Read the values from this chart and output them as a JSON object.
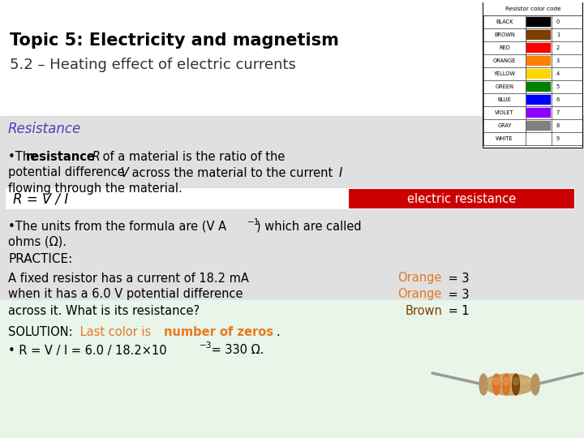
{
  "title1": "Topic 5: Electricity and magnetism",
  "title2": "5.2 – Heating effect of electric currents",
  "section_title": "Resistance",
  "bg_color": "#ffffff",
  "section_bg": "#e0e0e0",
  "practice_bg": "#e8f5e8",
  "resistor_table_title": "Resistor color code",
  "resistor_colors": [
    [
      "BLACK",
      "#000000",
      "0"
    ],
    [
      "BROWN",
      "#7B3F00",
      "1"
    ],
    [
      "RED",
      "#FF0000",
      "2"
    ],
    [
      "ORANGE",
      "#FF8000",
      "3"
    ],
    [
      "YELLOW",
      "#FFD700",
      "4"
    ],
    [
      "GREEN",
      "#008000",
      "5"
    ],
    [
      "BLUE",
      "#0000FF",
      "6"
    ],
    [
      "VIOLET",
      "#8B00FF",
      "7"
    ],
    [
      "GRAY",
      "#808080",
      "8"
    ],
    [
      "WHITE",
      "#FFFFFF",
      "9"
    ]
  ],
  "formula_label_bg": "#cc0000",
  "formula_label_text": "electric resistance",
  "formula_text": "R = V / I",
  "section_title_color": "#4444bb",
  "orange_color": "#e87820",
  "brown_color": "#7B3F00",
  "title_fontsize": 15,
  "subtitle_fontsize": 13,
  "body_fontsize": 10.5,
  "section_fontsize": 12
}
